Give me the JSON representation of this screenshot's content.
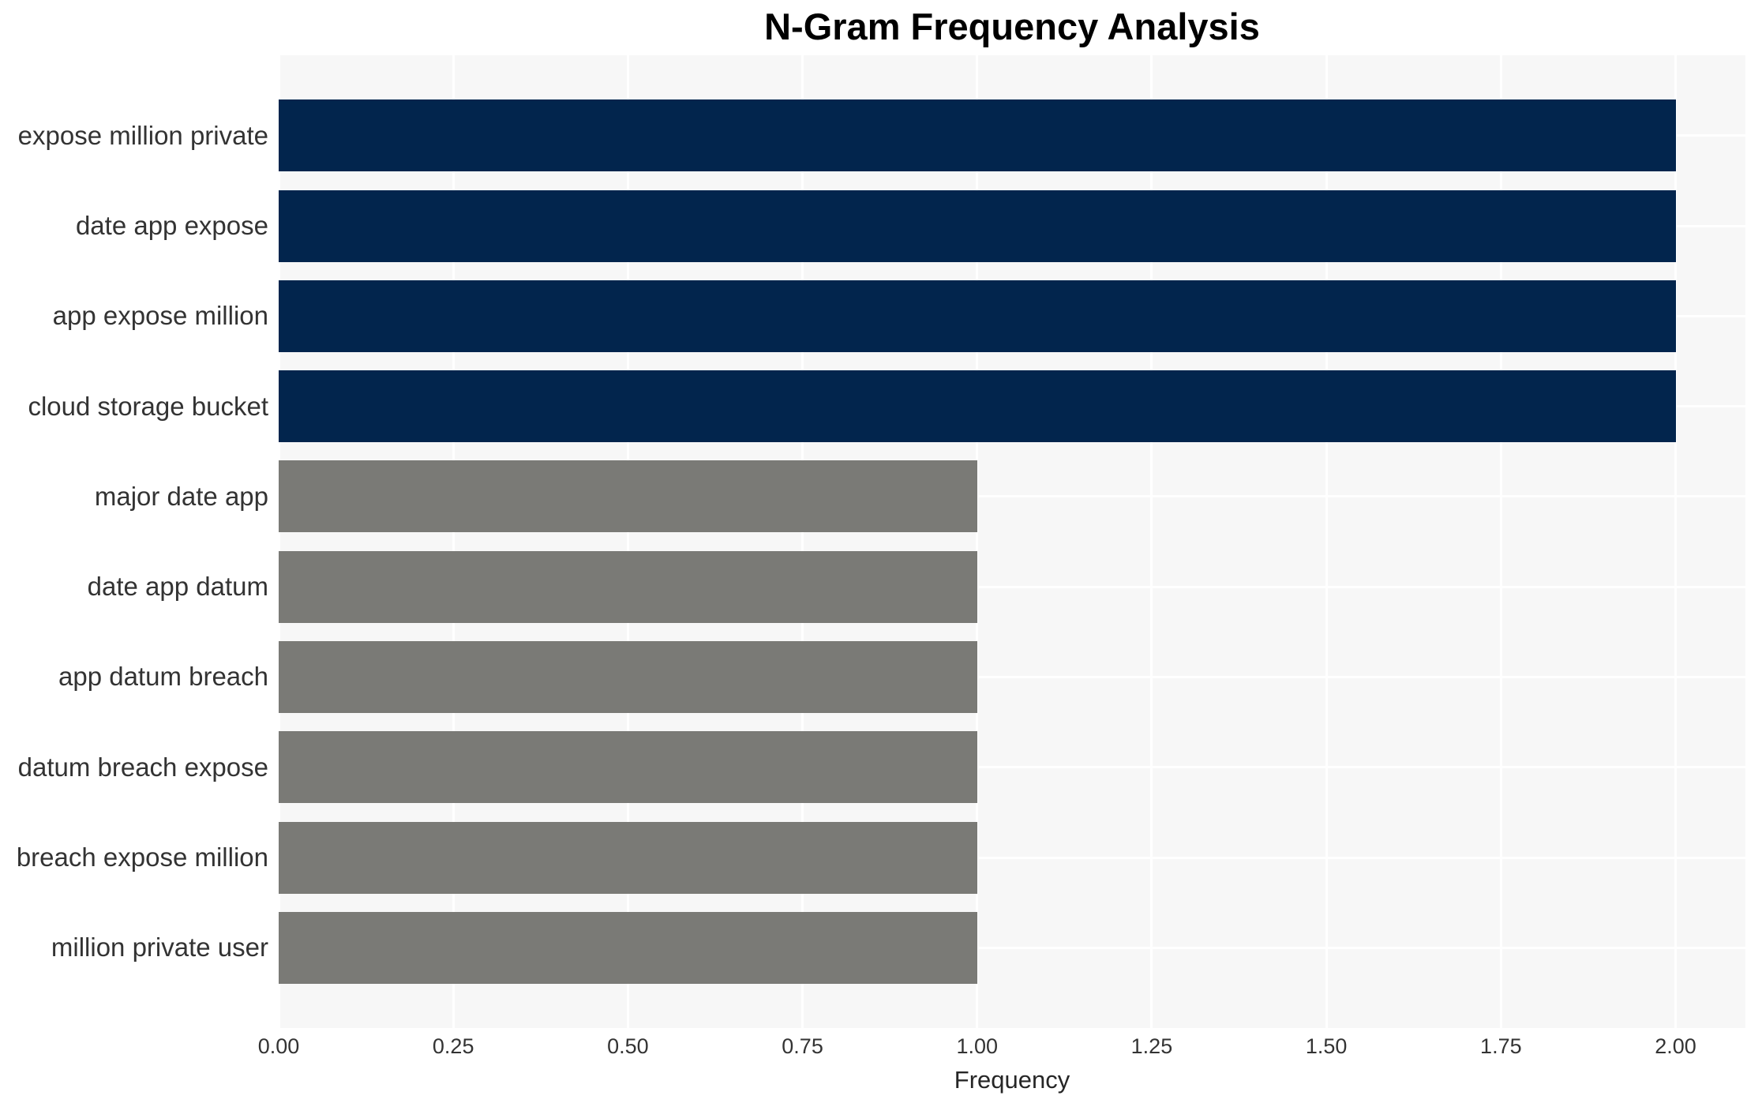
{
  "chart_data": {
    "type": "bar",
    "orientation": "horizontal",
    "title": "N-Gram Frequency Analysis",
    "xlabel": "Frequency",
    "ylabel": "",
    "categories": [
      "expose million private",
      "date app expose",
      "app expose million",
      "cloud storage bucket",
      "major date app",
      "date app datum",
      "app datum breach",
      "datum breach expose",
      "breach expose million",
      "million private user"
    ],
    "values": [
      2,
      2,
      2,
      2,
      1,
      1,
      1,
      1,
      1,
      1
    ],
    "bar_colors": [
      "#02254D",
      "#02254D",
      "#02254D",
      "#02254D",
      "#7A7A76",
      "#7A7A76",
      "#7A7A76",
      "#7A7A76",
      "#7A7A76",
      "#7A7A76"
    ],
    "xlim": [
      0,
      2.1
    ],
    "xticks": [
      {
        "label": "0.00",
        "value": 0.0
      },
      {
        "label": "0.25",
        "value": 0.25
      },
      {
        "label": "0.50",
        "value": 0.5
      },
      {
        "label": "0.75",
        "value": 0.75
      },
      {
        "label": "1.00",
        "value": 1.0
      },
      {
        "label": "1.25",
        "value": 1.25
      },
      {
        "label": "1.50",
        "value": 1.5
      },
      {
        "label": "1.75",
        "value": 1.75
      },
      {
        "label": "2.00",
        "value": 2.0
      }
    ],
    "grid": true,
    "legend": "none",
    "styles": {
      "plot_background": "#F7F7F7",
      "grid_color": "#FFFFFF",
      "tick_text_color": "#333333",
      "title_color": "#000000",
      "figure_background": "#FFFFFF"
    }
  }
}
